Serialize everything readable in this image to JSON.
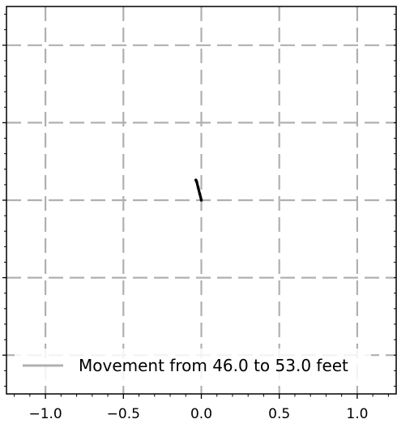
{
  "chart_data": {
    "type": "line",
    "title": "",
    "xlabel": "",
    "ylabel": "",
    "xlim": [
      -1.25,
      1.25
    ],
    "ylim": [
      -1.25,
      1.25
    ],
    "x_ticks": [
      -1.0,
      -0.5,
      0.0,
      0.5,
      1.0
    ],
    "x_tick_labels": [
      "−1.0",
      "−0.5",
      "0.0",
      "0.5",
      "1.0"
    ],
    "y_ticks": [
      -1.0,
      -0.5,
      0.0,
      0.5,
      1.0
    ],
    "y_tick_labels_visible": false,
    "grid": true,
    "grid_style": "dashed",
    "legend_position": "lower-left",
    "series": [
      {
        "name": "Movement from 46.0 to 53.0 feet",
        "color": "#000000",
        "legend_color": "#b0b0b0",
        "x": [
          0.0,
          -0.01,
          -0.02,
          -0.03,
          -0.035
        ],
        "y": [
          0.0,
          0.04,
          0.08,
          0.12,
          0.13
        ]
      }
    ]
  }
}
